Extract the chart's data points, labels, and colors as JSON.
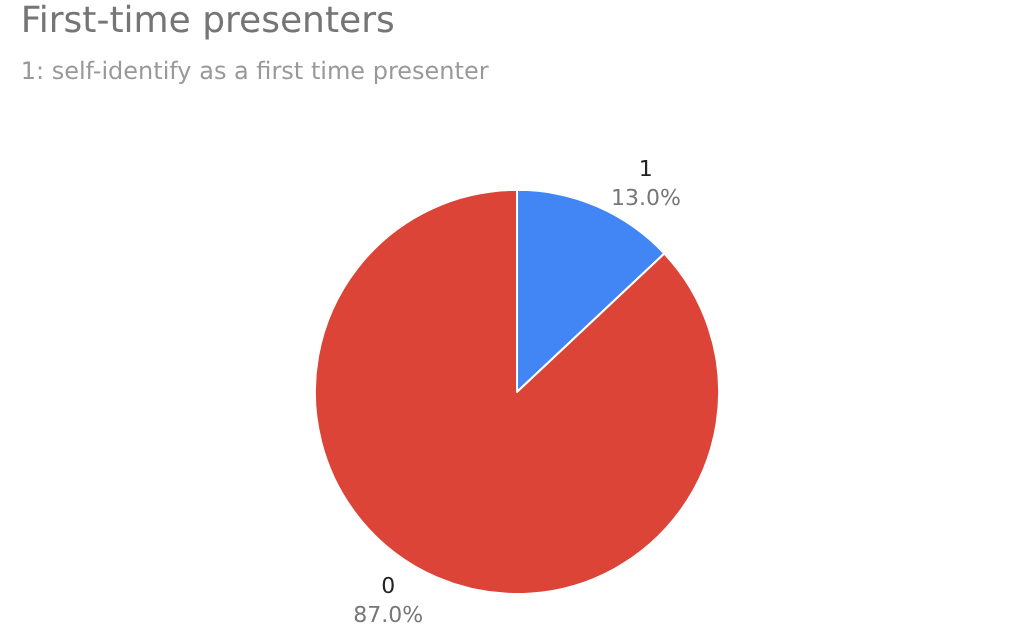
{
  "chart_data": {
    "type": "pie",
    "title": "First-time presenters",
    "subtitle": "1: self-identify as a first time presenter",
    "categories": [
      "1",
      "0"
    ],
    "values": [
      13.0,
      87.0
    ],
    "colors": [
      "#4285f4",
      "#db4437"
    ],
    "value_labels": [
      "13.0%",
      "87.0%"
    ],
    "legend": false
  }
}
